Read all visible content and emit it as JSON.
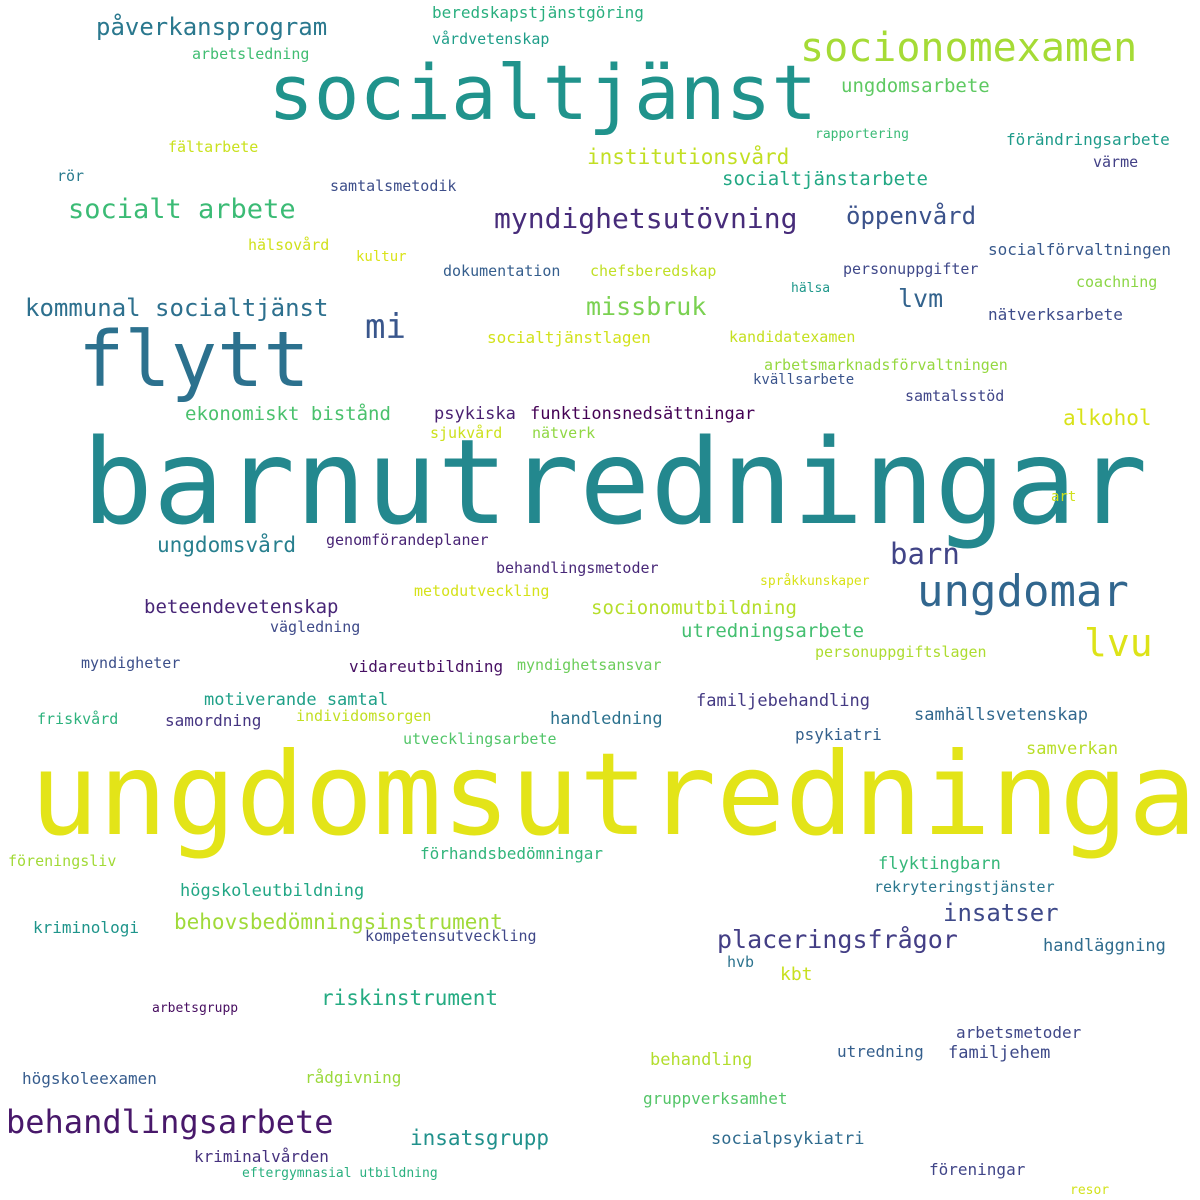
{
  "words": [
    {
      "text": "ungdomsutredningar",
      "color": "#e3e418"
    },
    {
      "text": "barnutredningar",
      "color": "#23888e"
    },
    {
      "text": "socialtjänst",
      "color": "#20938c"
    },
    {
      "text": "flytt",
      "color": "#2c718e"
    },
    {
      "text": "socionomexamen",
      "color": "#a5db36"
    },
    {
      "text": "ungdomar",
      "color": "#31668e"
    },
    {
      "text": "behandlingsarbete",
      "color": "#48186a"
    },
    {
      "text": "lvu",
      "color": "#dde318"
    },
    {
      "text": "myndighetsutövning",
      "color": "#472c7a"
    },
    {
      "text": "socialt arbete",
      "color": "#3bbb75"
    },
    {
      "text": "påverkansprogram",
      "color": "#2a788e"
    },
    {
      "text": "mi",
      "color": "#39568c"
    },
    {
      "text": "kommunal socialtjänst",
      "color": "#2d708e"
    },
    {
      "text": "missbruk",
      "color": "#7ad151"
    },
    {
      "text": "barn",
      "color": "#414487"
    },
    {
      "text": "placeringsfrågor",
      "color": "#433e85"
    },
    {
      "text": "insatser",
      "color": "#3e4989"
    },
    {
      "text": "öppenvård",
      "color": "#3b528b"
    },
    {
      "text": "lvm",
      "color": "#33638d"
    },
    {
      "text": "institutionsvård",
      "color": "#c2df23"
    },
    {
      "text": "socialtjänstarbete",
      "color": "#22a884"
    },
    {
      "text": "ungdomsarbete",
      "color": "#5ec962"
    },
    {
      "text": "ungdomsvård",
      "color": "#277f8e"
    },
    {
      "text": "alkohol",
      "color": "#d8e219"
    },
    {
      "text": "insatsgrupp",
      "color": "#21918c"
    },
    {
      "text": "riskinstrument",
      "color": "#25ab82"
    },
    {
      "text": "behovsbedömningsinstrument",
      "color": "#a0da39"
    },
    {
      "text": "utredningsarbete",
      "color": "#44bf70"
    },
    {
      "text": "ekonomiskt bistånd",
      "color": "#4ac16d"
    },
    {
      "text": "beteendevetenskap",
      "color": "#482677"
    },
    {
      "text": "socionomutbildning",
      "color": "#b5de2b"
    },
    {
      "text": "funktionsnedsättningar",
      "color": "#440154"
    },
    {
      "text": "psykiska",
      "color": "#481f70"
    },
    {
      "text": "samverkan",
      "color": "#b8de29"
    },
    {
      "text": "motiverande samtal",
      "color": "#1fa088"
    },
    {
      "text": "familjebehandling",
      "color": "#443a83"
    },
    {
      "text": "handledning",
      "color": "#2c728e"
    },
    {
      "text": "samhällsvetenskap",
      "color": "#31688e"
    },
    {
      "text": "högskoleutbildning",
      "color": "#22a785"
    },
    {
      "text": "förhandsbedömningar",
      "color": "#31b57b"
    },
    {
      "text": "flyktingbarn",
      "color": "#35b779"
    },
    {
      "text": "handläggning",
      "color": "#2f6c8e"
    },
    {
      "text": "kbt",
      "color": "#c8e020"
    },
    {
      "text": "behandling",
      "color": "#b2dd2d"
    },
    {
      "text": "gruppverksamhet",
      "color": "#54c568"
    },
    {
      "text": "socialpsykiatri",
      "color": "#2f6b8e"
    },
    {
      "text": "familjehem",
      "color": "#3e4a89"
    },
    {
      "text": "utredning",
      "color": "#355f8d"
    },
    {
      "text": "arbetsmetoder",
      "color": "#3f4788"
    },
    {
      "text": "högskoleexamen",
      "color": "#365c8d"
    },
    {
      "text": "rådgivning",
      "color": "#9bd93c"
    },
    {
      "text": "kriminalvården",
      "color": "#46327e"
    },
    {
      "text": "föreningar",
      "color": "#404588"
    },
    {
      "text": "beredskapstjänstgöring",
      "color": "#29af7f"
    },
    {
      "text": "vårdvetenskap",
      "color": "#1f9e89"
    },
    {
      "text": "arbetsledning",
      "color": "#40bd72"
    },
    {
      "text": "rapportering",
      "color": "#3aba76"
    },
    {
      "text": "förändringsarbete",
      "color": "#1e9b8a"
    },
    {
      "text": "värme",
      "color": "#424086"
    },
    {
      "text": "fältarbete",
      "color": "#cae11f"
    },
    {
      "text": "rör",
      "color": "#297b8e"
    },
    {
      "text": "samtalsmetodik",
      "color": "#3d4e8a"
    },
    {
      "text": "hälsovård",
      "color": "#d0e11c"
    },
    {
      "text": "kultur",
      "color": "#dae319"
    },
    {
      "text": "dokumentation",
      "color": "#355e8d"
    },
    {
      "text": "chefsberedskap",
      "color": "#c0df25"
    },
    {
      "text": "personuppgifter",
      "color": "#3f4889"
    },
    {
      "text": "socialförvaltningen",
      "color": "#38598c"
    },
    {
      "text": "hälsa",
      "color": "#1f988b"
    },
    {
      "text": "coachning",
      "color": "#8bd646"
    },
    {
      "text": "nätverksarbete",
      "color": "#3e4c8a"
    },
    {
      "text": "socialtjänstlagen",
      "color": "#d2e21b"
    },
    {
      "text": "kandidatexamen",
      "color": "#c5e021"
    },
    {
      "text": "arbetsmarknadsförvaltningen",
      "color": "#95d840"
    },
    {
      "text": "kvällsarbete",
      "color": "#3a548c"
    },
    {
      "text": "samtalsstöd",
      "color": "#404688"
    },
    {
      "text": "sjukvård",
      "color": "#cde11d"
    },
    {
      "text": "nätverk",
      "color": "#90d743"
    },
    {
      "text": "art",
      "color": "#d0e11c"
    },
    {
      "text": "genomförandeplaner",
      "color": "#482475"
    },
    {
      "text": "behandlingsmetoder",
      "color": "#482878"
    },
    {
      "text": "metodutveckling",
      "color": "#d5e21a"
    },
    {
      "text": "språkkunskaper",
      "color": "#d8e219"
    },
    {
      "text": "vägledning",
      "color": "#3e4a89"
    },
    {
      "text": "personuppgiftslagen",
      "color": "#addc30"
    },
    {
      "text": "myndigheter",
      "color": "#3c4f8a"
    },
    {
      "text": "vidareutbildning",
      "color": "#471063"
    },
    {
      "text": "myndighetsansvar",
      "color": "#6ccd5a"
    },
    {
      "text": "friskvård",
      "color": "#2db27d"
    },
    {
      "text": "samordning",
      "color": "#453581"
    },
    {
      "text": "individomsorgen",
      "color": "#c2df23"
    },
    {
      "text": "utvecklingsarbete",
      "color": "#52c569"
    },
    {
      "text": "psykiatri",
      "color": "#34608d"
    },
    {
      "text": "föreningsliv",
      "color": "#a2da37"
    },
    {
      "text": "rekryteringstjänster",
      "color": "#2a768e"
    },
    {
      "text": "kriminologi",
      "color": "#1f958b"
    },
    {
      "text": "kompetensutveckling",
      "color": "#3f4788"
    },
    {
      "text": "hvb",
      "color": "#2c738e"
    },
    {
      "text": "arbetsgrupp",
      "color": "#470d60"
    },
    {
      "text": "eftergymnasial utbildning",
      "color": "#2ab07f"
    },
    {
      "text": "resor",
      "color": "#d2e21b"
    }
  ]
}
